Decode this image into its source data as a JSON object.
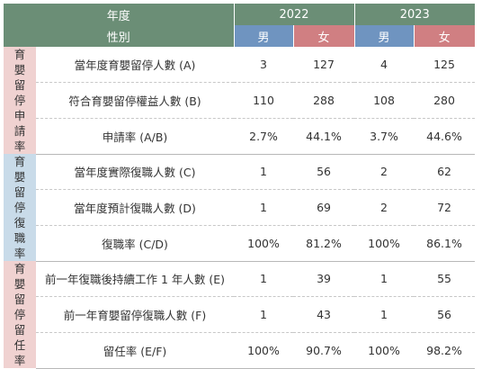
{
  "header": {
    "year_label": "年度",
    "gender_label": "性別",
    "years": [
      "2022",
      "2023"
    ],
    "male": "男",
    "female": "女"
  },
  "groups": [
    {
      "category": "育嬰留停申請率",
      "rows": [
        {
          "label": "當年度育嬰留停人數 (A)",
          "m2022": "3",
          "f2022": "127",
          "m2023": "4",
          "f2023": "125"
        },
        {
          "label": "符合育嬰留停權益人數 (B)",
          "m2022": "110",
          "f2022": "288",
          "m2023": "108",
          "f2023": "280"
        },
        {
          "label": "申請率 (A/B)",
          "m2022": "2.7%",
          "f2022": "44.1%",
          "m2023": "3.7%",
          "f2023": "44.6%"
        }
      ]
    },
    {
      "category": "育嬰留停復職率",
      "rows": [
        {
          "label": "當年度實際復職人數 (C)",
          "m2022": "1",
          "f2022": "56",
          "m2023": "2",
          "f2023": "62"
        },
        {
          "label": "當年度預計復職人數 (D)",
          "m2022": "1",
          "f2022": "69",
          "m2023": "2",
          "f2023": "72"
        },
        {
          "label": "復職率 (C/D)",
          "m2022": "100%",
          "f2022": "81.2%",
          "m2023": "100%",
          "f2023": "86.1%"
        }
      ]
    },
    {
      "category": "育嬰留停留任率",
      "rows": [
        {
          "label": "前一年復職後持續工作 1 年人數 (E)",
          "m2022": "1",
          "f2022": "39",
          "m2023": "1",
          "f2023": "55"
        },
        {
          "label": "前一年育嬰留停復職人數 (F)",
          "m2022": "1",
          "f2022": "43",
          "m2023": "1",
          "f2023": "56"
        },
        {
          "label": "留任率 (E/F)",
          "m2022": "100%",
          "f2022": "90.7%",
          "m2023": "100%",
          "f2023": "98.2%"
        }
      ]
    }
  ],
  "colors": {
    "header_green": "#6b8e76",
    "male_blue": "#6f94c0",
    "female_pink": "#d07f82",
    "category_pink": "#f0d2d1",
    "category_blue": "#c9dbe9"
  }
}
